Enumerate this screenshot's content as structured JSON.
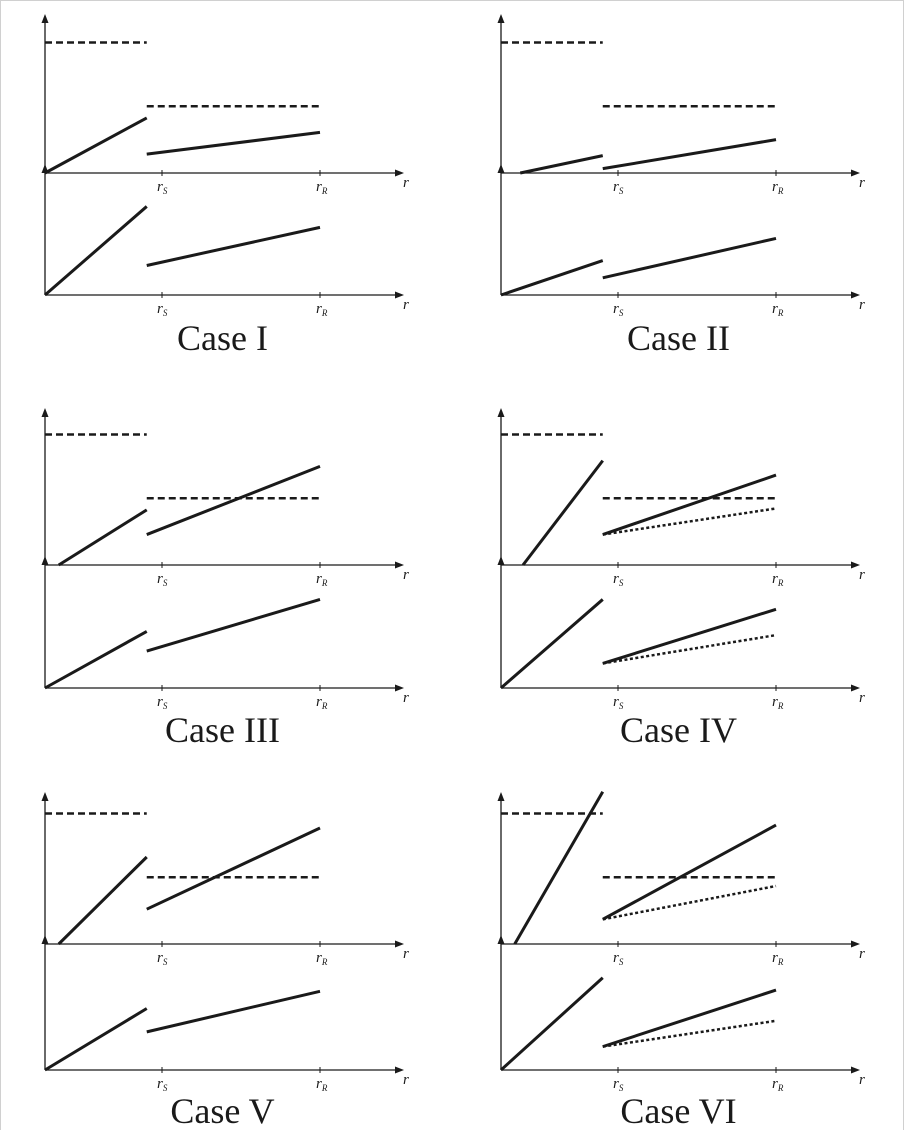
{
  "colors": {
    "ink": "#1a1a1a",
    "background": "#ffffff"
  },
  "tick_labels": {
    "r_s": "r",
    "r_s_sub": "S",
    "r_r": "r",
    "r_r_sub": "R",
    "axis_r": "r"
  },
  "cases": [
    {
      "title": "Case I",
      "upper": {
        "dashed": [
          [
            0,
            0.9,
            0.37,
            0.9
          ],
          [
            0.37,
            0.46,
            1.0,
            0.46
          ]
        ],
        "solid": [
          [
            0,
            0.0,
            0.37,
            0.38
          ],
          [
            0.37,
            0.13,
            1.0,
            0.28
          ]
        ],
        "dotted": []
      },
      "lower": {
        "solid": [
          [
            0,
            0.0,
            0.37,
            0.72
          ],
          [
            0.37,
            0.24,
            1.0,
            0.55
          ]
        ],
        "dotted": []
      }
    },
    {
      "title": "Case II",
      "upper": {
        "dashed": [
          [
            0,
            0.9,
            0.37,
            0.9
          ],
          [
            0.37,
            0.46,
            1.0,
            0.46
          ]
        ],
        "solid": [
          [
            0.07,
            0.0,
            0.37,
            0.12
          ],
          [
            0.37,
            0.03,
            1.0,
            0.23
          ]
        ],
        "dotted": []
      },
      "lower": {
        "solid": [
          [
            0,
            0.0,
            0.37,
            0.28
          ],
          [
            0.37,
            0.14,
            1.0,
            0.46
          ]
        ],
        "dotted": []
      }
    },
    {
      "title": "Case III",
      "upper": {
        "dashed": [
          [
            0,
            0.9,
            0.37,
            0.9
          ],
          [
            0.37,
            0.46,
            1.0,
            0.46
          ]
        ],
        "solid": [
          [
            0.05,
            0.0,
            0.37,
            0.38
          ],
          [
            0.37,
            0.21,
            1.0,
            0.68
          ]
        ],
        "dotted": []
      },
      "lower": {
        "solid": [
          [
            0,
            0.0,
            0.37,
            0.46
          ],
          [
            0.37,
            0.3,
            1.0,
            0.72
          ]
        ],
        "dotted": []
      }
    },
    {
      "title": "Case IV",
      "upper": {
        "dashed": [
          [
            0,
            0.9,
            0.37,
            0.9
          ],
          [
            0.37,
            0.46,
            1.0,
            0.46
          ]
        ],
        "solid": [
          [
            0.08,
            0.0,
            0.37,
            0.72
          ],
          [
            0.37,
            0.21,
            1.0,
            0.62
          ]
        ],
        "dotted": [
          [
            0.37,
            0.21,
            1.0,
            0.39
          ]
        ]
      },
      "lower": {
        "solid": [
          [
            0,
            0.0,
            0.37,
            0.72
          ],
          [
            0.37,
            0.2,
            1.0,
            0.64
          ]
        ],
        "dotted": [
          [
            0.37,
            0.2,
            1.0,
            0.43
          ]
        ]
      }
    },
    {
      "title": "Case V",
      "upper": {
        "dashed": [
          [
            0,
            0.9,
            0.37,
            0.9
          ],
          [
            0.37,
            0.46,
            1.0,
            0.46
          ]
        ],
        "solid": [
          [
            0.05,
            0.0,
            0.37,
            0.6
          ],
          [
            0.37,
            0.24,
            1.0,
            0.8
          ]
        ],
        "dotted": []
      },
      "lower": {
        "solid": [
          [
            0,
            0.0,
            0.37,
            0.5
          ],
          [
            0.37,
            0.31,
            1.0,
            0.64
          ]
        ],
        "dotted": []
      }
    },
    {
      "title": "Case VI",
      "upper": {
        "dashed": [
          [
            0,
            0.9,
            0.37,
            0.9
          ],
          [
            0.37,
            0.46,
            1.0,
            0.46
          ]
        ],
        "solid": [
          [
            0.05,
            0.0,
            0.37,
            1.05
          ],
          [
            0.37,
            0.17,
            1.0,
            0.82
          ]
        ],
        "dotted": [
          [
            0.37,
            0.17,
            1.0,
            0.4
          ]
        ]
      },
      "lower": {
        "solid": [
          [
            0,
            0.0,
            0.37,
            0.75
          ],
          [
            0.37,
            0.19,
            1.0,
            0.65
          ]
        ],
        "dotted": [
          [
            0.37,
            0.19,
            1.0,
            0.4
          ]
        ]
      }
    }
  ]
}
